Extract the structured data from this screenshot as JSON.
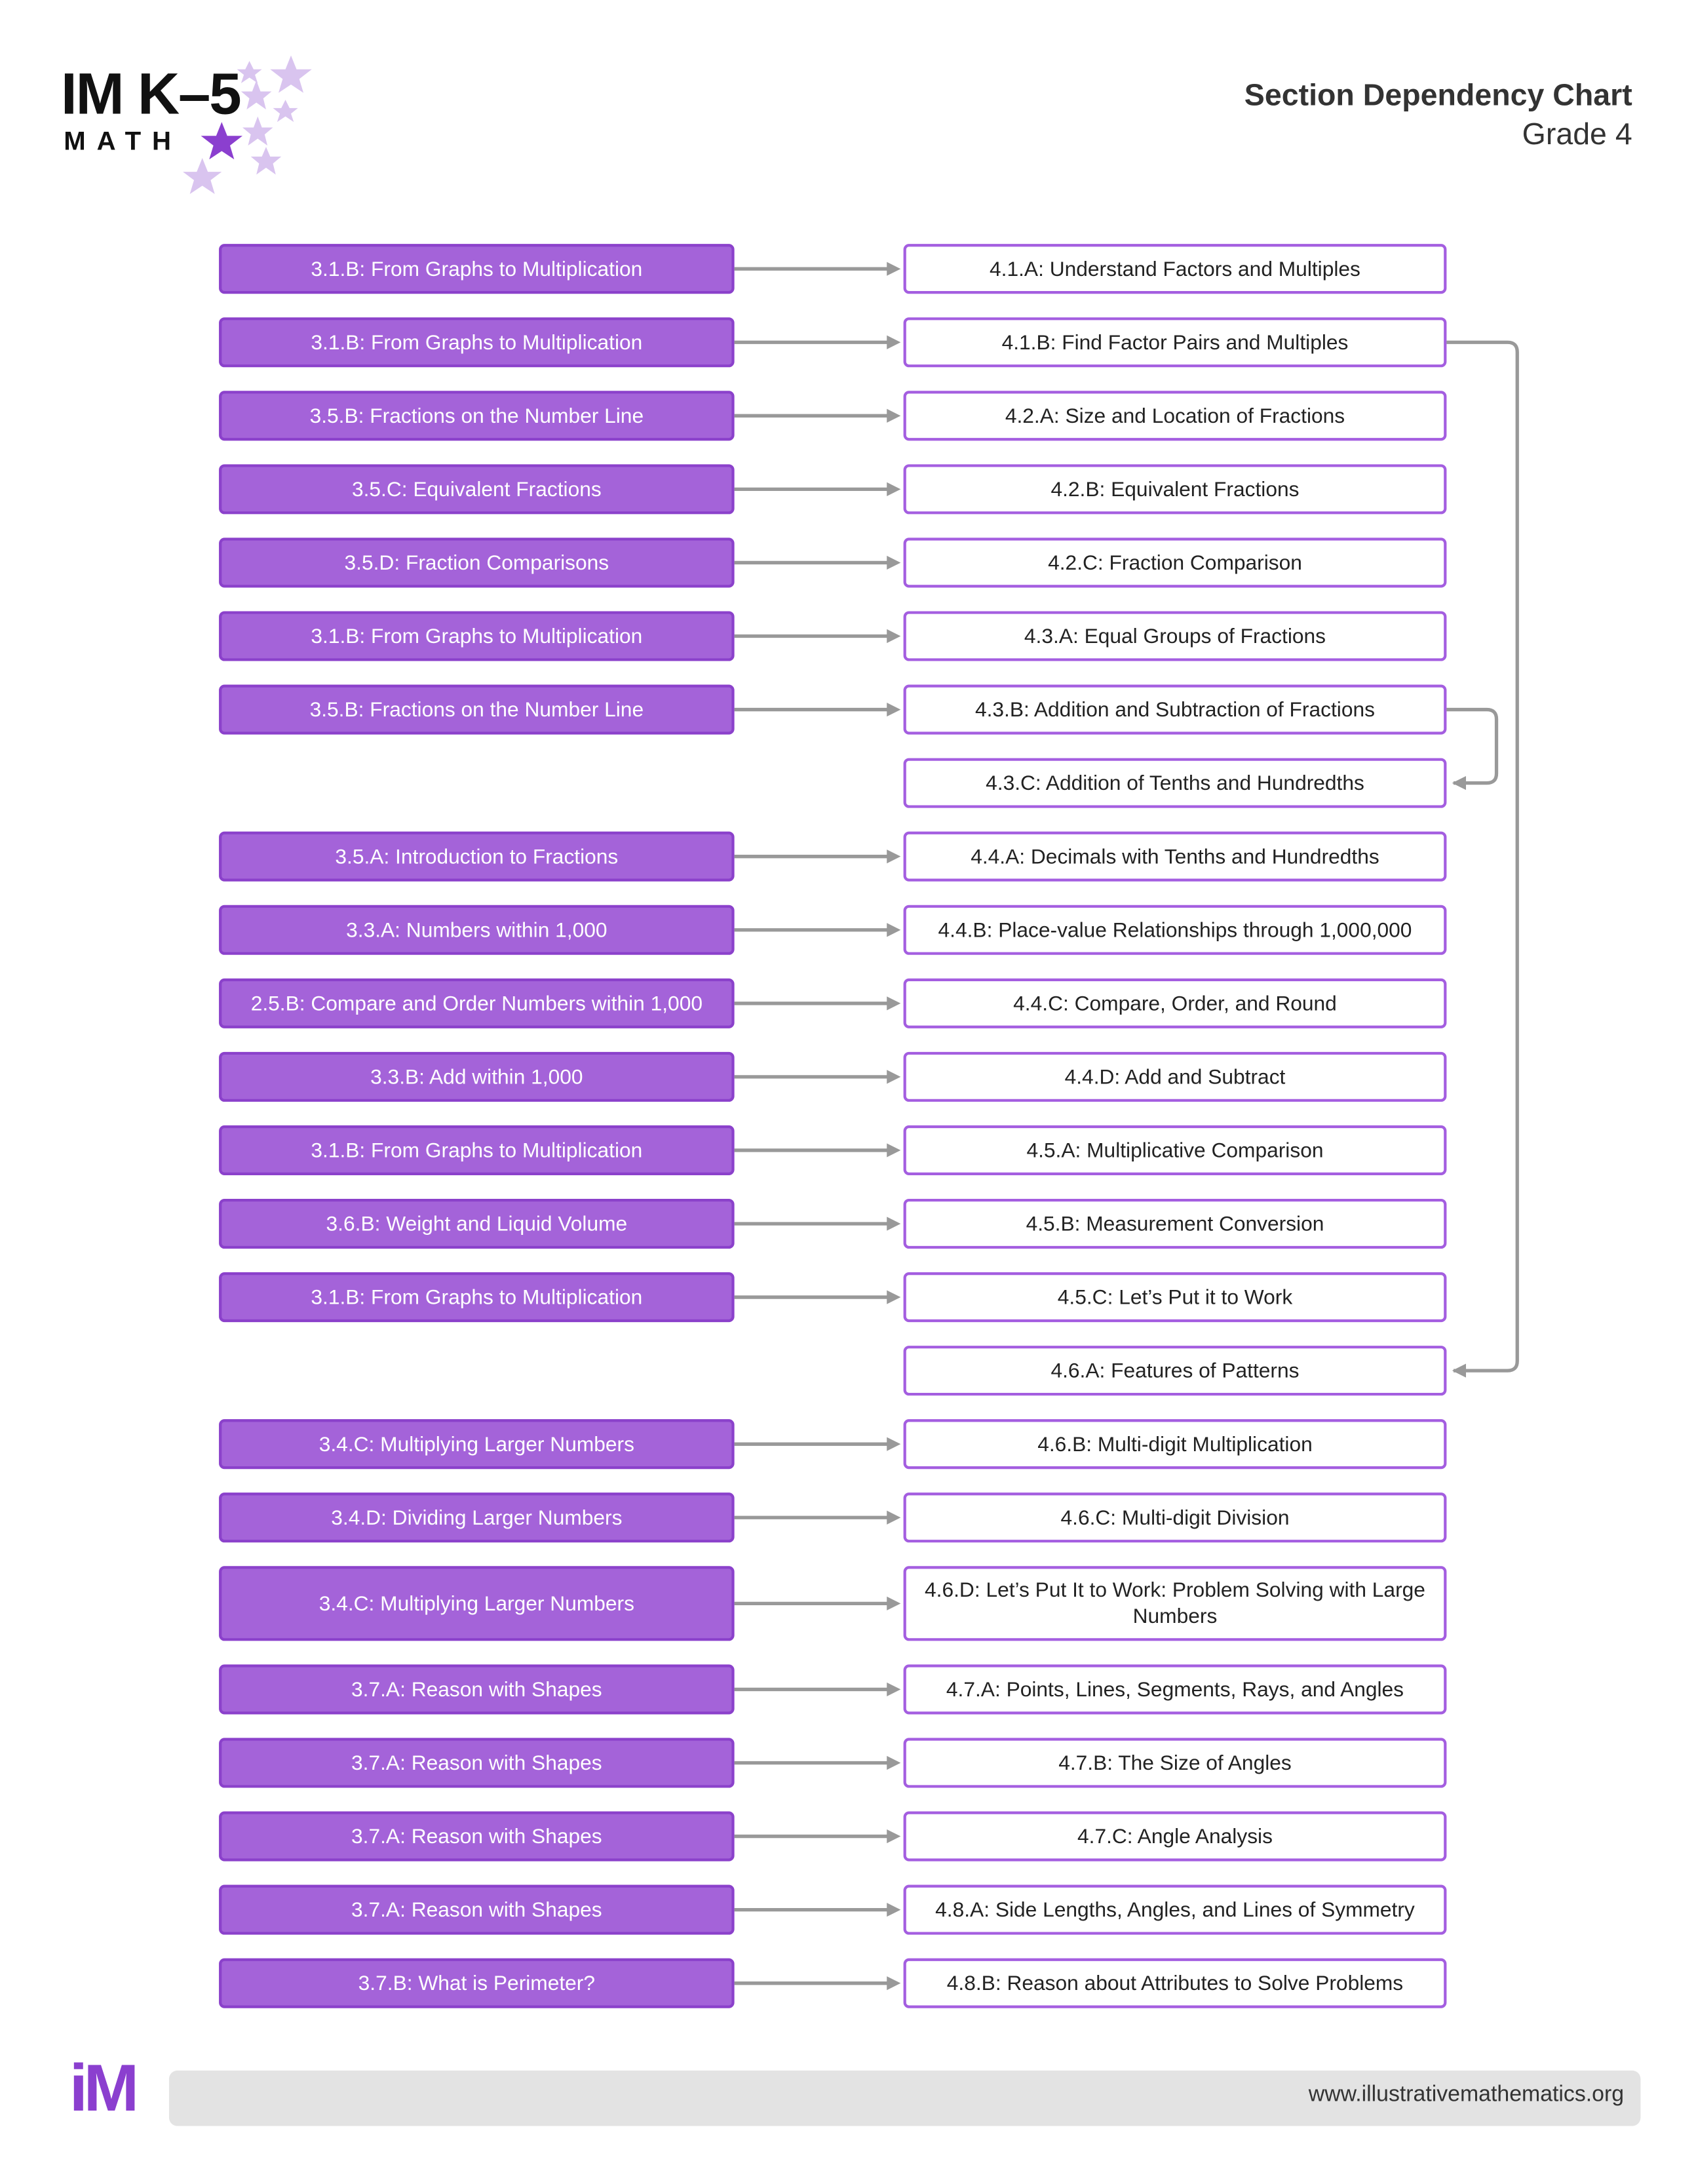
{
  "header": {
    "logo_title": "IM K–5",
    "logo_subtitle": "MATH",
    "title": "Section Dependency Chart",
    "subtitle": "Grade 4"
  },
  "rows": [
    {
      "source": "3.1.B: From Graphs to Multiplication",
      "target": "4.1.A: Understand Factors and Multiples"
    },
    {
      "source": "3.1.B: From Graphs to Multiplication",
      "target": "4.1.B: Find Factor Pairs and Multiples"
    },
    {
      "source": "3.5.B: Fractions on the Number Line",
      "target": "4.2.A: Size and Location of Fractions"
    },
    {
      "source": "3.5.C: Equivalent Fractions",
      "target": "4.2.B: Equivalent Fractions"
    },
    {
      "source": "3.5.D: Fraction Comparisons",
      "target": "4.2.C: Fraction Comparison"
    },
    {
      "source": "3.1.B: From Graphs to Multiplication",
      "target": "4.3.A: Equal Groups of Fractions"
    },
    {
      "source": "3.5.B: Fractions on the Number Line",
      "target": "4.3.B: Addition and Subtraction of Fractions"
    },
    {
      "target": "4.3.C: Addition of Tenths and Hundredths"
    },
    {
      "source": "3.5.A: Introduction to Fractions",
      "target": "4.4.A: Decimals with Tenths and Hundredths"
    },
    {
      "source": "3.3.A: Numbers within 1,000",
      "target": "4.4.B: Place-value Relationships through 1,000,000"
    },
    {
      "source": "2.5.B: Compare and Order Numbers within 1,000",
      "target": "4.4.C: Compare, Order, and Round"
    },
    {
      "source": "3.3.B: Add within 1,000",
      "target": "4.4.D: Add and Subtract"
    },
    {
      "source": "3.1.B: From Graphs to Multiplication",
      "target": "4.5.A: Multiplicative Comparison"
    },
    {
      "source": "3.6.B: Weight and Liquid Volume",
      "target": "4.5.B: Measurement Conversion"
    },
    {
      "source": "3.1.B: From Graphs to Multiplication",
      "target": "4.5.C: Let’s Put it to Work"
    },
    {
      "target": "4.6.A: Features of Patterns"
    },
    {
      "source": "3.4.C: Multiplying Larger Numbers",
      "target": "4.6.B: Multi-digit Multiplication"
    },
    {
      "source": "3.4.D: Dividing Larger Numbers",
      "target": "4.6.C: Multi-digit Division"
    },
    {
      "source": "3.4.C: Multiplying Larger Numbers",
      "target": "4.6.D: Let’s Put It to Work: Problem Solving with Large Numbers"
    },
    {
      "source": "3.7.A: Reason with Shapes",
      "target": "4.7.A: Points, Lines, Segments, Rays, and Angles"
    },
    {
      "source": "3.7.A: Reason with Shapes",
      "target": "4.7.B: The Size of Angles"
    },
    {
      "source": "3.7.A: Reason with Shapes",
      "target": "4.7.C: Angle Analysis"
    },
    {
      "source": "3.7.A: Reason with Shapes",
      "target": "4.8.A: Side Lengths, Angles, and Lines of Symmetry"
    },
    {
      "source": "3.7.B: What is Perimeter?",
      "target": "4.8.B: Reason about Attributes to Solve Problems"
    }
  ],
  "footer": {
    "logo": "iM",
    "url": "www.illustrativemathematics.org"
  }
}
